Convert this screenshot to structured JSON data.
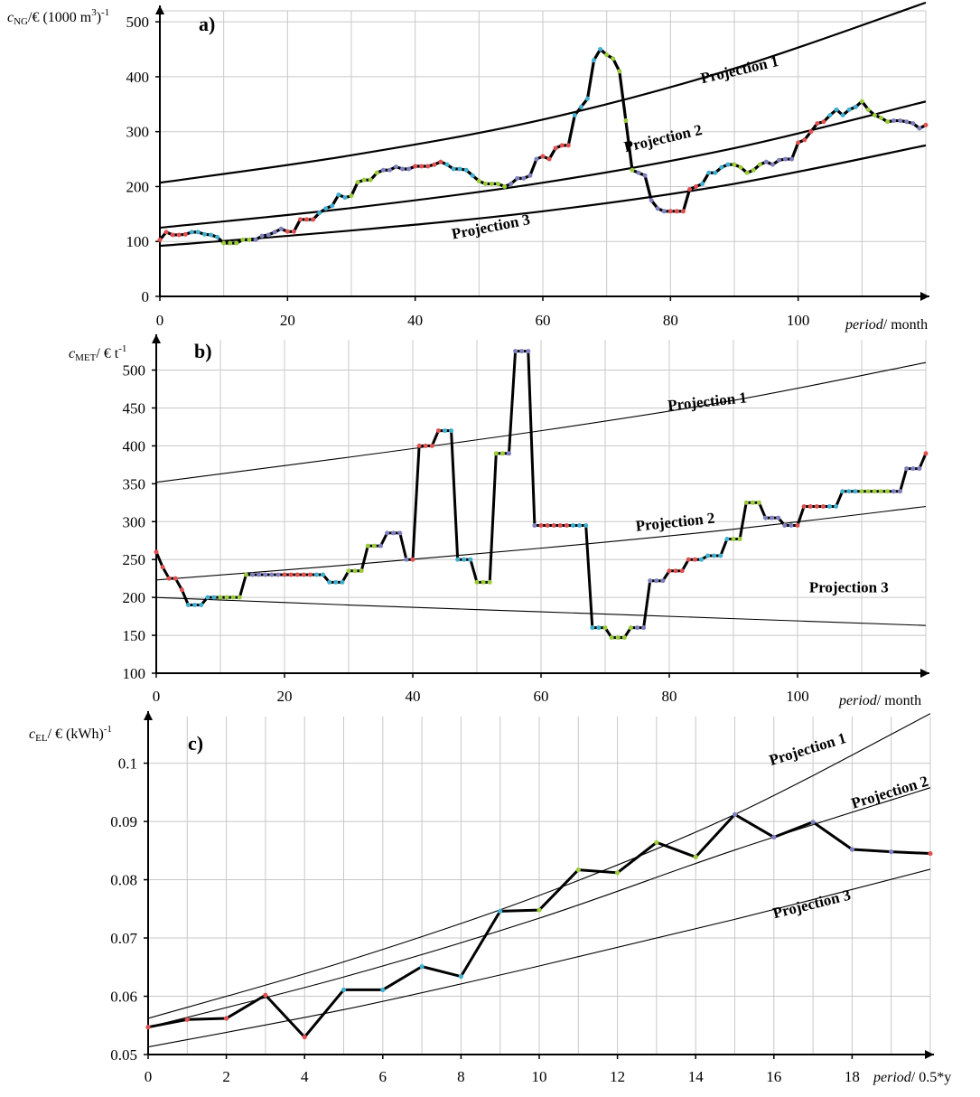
{
  "figure": {
    "background": "#ffffff"
  },
  "chart_data": [
    {
      "id": "a",
      "type": "line",
      "panel_label": "a)",
      "ylabel_parts": {
        "sym": "c",
        "sub": "NG",
        "rest": "/€ (1000 m",
        "sup1": "3",
        "rest2": ")",
        "sup2": "-1"
      },
      "xlabel_parts": {
        "ital": "period",
        "rest": "/ month"
      },
      "xlim": [
        0,
        120
      ],
      "ylim": [
        0,
        520
      ],
      "xticks": [
        0,
        20,
        40,
        60,
        80,
        100
      ],
      "yticks": [
        0,
        100,
        200,
        300,
        400,
        500
      ],
      "xtick_labels": [
        "0",
        "20",
        "40",
        "60",
        "80",
        "100"
      ],
      "ytick_labels": [
        "0",
        "100",
        "200",
        "300",
        "400",
        "500"
      ],
      "grid": true,
      "projections": [
        {
          "name": "Projection 1",
          "x": [
            0,
            30,
            60,
            90,
            120
          ],
          "y": [
            207,
            257,
            322,
            415,
            535
          ]
        },
        {
          "name": "Projection 2",
          "x": [
            0,
            30,
            60,
            90,
            120
          ],
          "y": [
            125,
            161,
            207,
            270,
            355
          ]
        },
        {
          "name": "Projection 3",
          "x": [
            0,
            30,
            60,
            90,
            120
          ],
          "y": [
            92,
            120,
            155,
            205,
            275
          ]
        }
      ],
      "projection_labels": [
        {
          "text": "Projection 1",
          "at_x": 91,
          "at_y": 404,
          "angle": -13
        },
        {
          "text": "Projection 2",
          "at_x": 79,
          "at_y": 279,
          "angle": -13
        },
        {
          "text": "Projection 3",
          "at_x": 52,
          "at_y": 118,
          "angle": -11
        }
      ],
      "series": [
        {
          "name": "",
          "x": [
            0,
            1,
            2,
            3,
            4,
            5,
            6,
            7,
            8,
            9,
            10,
            11,
            12,
            13,
            14,
            15,
            16,
            17,
            18,
            19,
            20,
            21,
            22,
            23,
            24,
            25,
            26,
            27,
            28,
            29,
            30,
            31,
            32,
            33,
            34,
            35,
            36,
            37,
            38,
            39,
            40,
            41,
            42,
            43,
            44,
            45,
            46,
            47,
            48,
            49,
            50,
            51,
            52,
            53,
            54,
            55,
            56,
            57,
            58,
            59,
            60,
            61,
            62,
            63,
            64,
            65,
            66,
            67,
            68,
            69,
            70,
            71,
            72,
            73,
            74,
            75,
            76,
            77,
            78,
            79,
            80,
            81,
            82,
            83,
            84,
            85,
            86,
            87,
            88,
            89,
            90,
            91,
            92,
            93,
            94,
            95,
            96,
            97,
            98,
            99,
            100,
            101,
            102,
            103,
            104,
            105,
            106,
            107,
            108,
            109,
            110,
            111,
            112,
            113,
            114,
            115,
            116,
            117,
            118,
            119,
            120
          ],
          "y": [
            103,
            117,
            112,
            112,
            113,
            117,
            117,
            113,
            112,
            108,
            97,
            97,
            97,
            103,
            103,
            103,
            110,
            112,
            117,
            123,
            118,
            118,
            140,
            140,
            140,
            152,
            160,
            165,
            185,
            180,
            183,
            208,
            212,
            212,
            225,
            230,
            230,
            236,
            232,
            232,
            237,
            237,
            237,
            240,
            245,
            240,
            232,
            232,
            230,
            220,
            210,
            205,
            205,
            205,
            200,
            205,
            215,
            215,
            220,
            250,
            255,
            250,
            270,
            275,
            275,
            330,
            345,
            360,
            430,
            450,
            440,
            433,
            410,
            320,
            230,
            225,
            220,
            175,
            160,
            155,
            155,
            155,
            155,
            195,
            200,
            205,
            225,
            225,
            235,
            240,
            240,
            235,
            225,
            230,
            240,
            245,
            240,
            248,
            250,
            250,
            280,
            285,
            300,
            315,
            318,
            330,
            340,
            330,
            340,
            345,
            355,
            340,
            330,
            325,
            318,
            320,
            320,
            318,
            315,
            306,
            312
          ]
        }
      ]
    },
    {
      "id": "b",
      "type": "line",
      "panel_label": "b)",
      "ylabel_parts": {
        "sym": "c",
        "sub": "MET",
        "rest": "/ € t",
        "sup1": "-1"
      },
      "xlabel_parts": {
        "ital": "period",
        "rest": "/ month"
      },
      "xlim": [
        0,
        120
      ],
      "ylim": [
        100,
        540
      ],
      "xticks": [
        0,
        20,
        40,
        60,
        80,
        100
      ],
      "yticks": [
        100,
        150,
        200,
        250,
        300,
        350,
        400,
        450,
        500
      ],
      "xtick_labels": [
        "0",
        "20",
        "40",
        "60",
        "80",
        "100"
      ],
      "ytick_labels": [
        "100",
        "150",
        "200",
        "250",
        "300",
        "350",
        "400",
        "450",
        "500"
      ],
      "grid": true,
      "projections": [
        {
          "name": "Projection 1",
          "x": [
            0,
            30,
            60,
            90,
            120
          ],
          "y": [
            352,
            385,
            420,
            460,
            510
          ]
        },
        {
          "name": "Projection 2",
          "x": [
            0,
            30,
            60,
            90,
            120
          ],
          "y": [
            223,
            243,
            265,
            290,
            320
          ]
        },
        {
          "name": "Projection 3",
          "x": [
            0,
            30,
            60,
            90,
            120
          ],
          "y": [
            200,
            190,
            181,
            172,
            163
          ]
        }
      ],
      "projection_labels": [
        {
          "text": "Projection 1",
          "at_x": 86,
          "at_y": 452,
          "angle": -6
        },
        {
          "text": "Projection 2",
          "at_x": 81,
          "at_y": 293,
          "angle": -6
        },
        {
          "text": "Projection 3",
          "at_x": 108,
          "at_y": 207,
          "angle": 0
        }
      ],
      "series": [
        {
          "name": "",
          "x": [
            0,
            1,
            2,
            3,
            4,
            5,
            6,
            7,
            8,
            9,
            10,
            11,
            12,
            13,
            14,
            15,
            16,
            17,
            18,
            19,
            20,
            21,
            22,
            23,
            24,
            25,
            26,
            27,
            28,
            29,
            30,
            31,
            32,
            33,
            34,
            35,
            36,
            37,
            38,
            39,
            40,
            41,
            42,
            43,
            44,
            45,
            46,
            47,
            48,
            49,
            50,
            51,
            52,
            53,
            54,
            55,
            56,
            57,
            58,
            59,
            60,
            61,
            62,
            63,
            64,
            65,
            66,
            67,
            68,
            69,
            70,
            71,
            72,
            73,
            74,
            75,
            76,
            77,
            78,
            79,
            80,
            81,
            82,
            83,
            84,
            85,
            86,
            87,
            88,
            89,
            90,
            91,
            92,
            93,
            94,
            95,
            96,
            97,
            98,
            99,
            100,
            101,
            102,
            103,
            104,
            105,
            106,
            107,
            108,
            109,
            110,
            111,
            112,
            113,
            114,
            115,
            116,
            117,
            118,
            119,
            120
          ],
          "y": [
            260,
            240,
            225,
            225,
            210,
            190,
            190,
            190,
            200,
            200,
            200,
            200,
            200,
            200,
            230,
            230,
            230,
            230,
            230,
            230,
            230,
            230,
            230,
            230,
            230,
            230,
            230,
            220,
            220,
            220,
            235,
            235,
            235,
            268,
            268,
            268,
            285,
            285,
            285,
            250,
            250,
            400,
            400,
            400,
            420,
            420,
            420,
            250,
            250,
            250,
            220,
            220,
            220,
            390,
            390,
            390,
            525,
            525,
            525,
            295,
            295,
            295,
            295,
            295,
            295,
            295,
            295,
            295,
            160,
            160,
            160,
            147,
            147,
            147,
            160,
            160,
            160,
            222,
            222,
            222,
            235,
            235,
            235,
            250,
            250,
            250,
            255,
            255,
            255,
            277,
            277,
            277,
            325,
            325,
            325,
            305,
            305,
            305,
            295,
            295,
            295,
            320,
            320,
            320,
            320,
            320,
            320,
            340,
            340,
            340,
            340,
            340,
            340,
            340,
            340,
            340,
            340,
            370,
            370,
            370,
            390
          ]
        }
      ]
    },
    {
      "id": "c",
      "type": "line",
      "panel_label": "c)",
      "ylabel_parts": {
        "sym": "c",
        "sub": "EL",
        "rest": "/ € (kWh)",
        "sup1": "-1"
      },
      "xlabel_parts": {
        "ital": "period",
        "rest": "/ 0.5*y"
      },
      "xlim": [
        0,
        20
      ],
      "ylim": [
        0.05,
        0.108
      ],
      "xticks": [
        0,
        2,
        4,
        6,
        8,
        10,
        12,
        14,
        16,
        18
      ],
      "yticks": [
        0.05,
        0.06,
        0.07,
        0.08,
        0.09,
        0.1
      ],
      "xtick_labels": [
        "0",
        "2",
        "4",
        "6",
        "8",
        "10",
        "12",
        "14",
        "16",
        "18"
      ],
      "ytick_labels": [
        "0.05",
        "0.06",
        "0.07",
        "0.08",
        "0.09",
        "0.1"
      ],
      "grid": true,
      "projections": [
        {
          "name": "Projection 1",
          "x": [
            0,
            5,
            10,
            15,
            20
          ],
          "y": [
            0.0562,
            0.0659,
            0.0773,
            0.0912,
            0.1085
          ]
        },
        {
          "name": "Projection 2",
          "x": [
            0,
            5,
            10,
            15,
            20
          ],
          "y": [
            0.0547,
            0.0633,
            0.0734,
            0.0851,
            0.0958
          ]
        },
        {
          "name": "Projection 3",
          "x": [
            0,
            5,
            10,
            15,
            20
          ],
          "y": [
            0.0513,
            0.0577,
            0.0652,
            0.0732,
            0.0818
          ]
        }
      ],
      "projection_labels": [
        {
          "text": "Projection 1",
          "at_x": 16.9,
          "at_y": 0.1016,
          "angle": -17
        },
        {
          "text": "Projection 2",
          "at_x": 19.0,
          "at_y": 0.0942,
          "angle": -17
        },
        {
          "text": "Projection 3",
          "at_x": 17.0,
          "at_y": 0.075,
          "angle": -14
        }
      ],
      "series": [
        {
          "name": "",
          "x": [
            0,
            1,
            2,
            3,
            4,
            5,
            6,
            7,
            8,
            9,
            10,
            11,
            12,
            13,
            14,
            15,
            16,
            17,
            18,
            19,
            20
          ],
          "y": [
            0.0547,
            0.056,
            0.0562,
            0.0602,
            0.053,
            0.0611,
            0.0611,
            0.0651,
            0.0634,
            0.0746,
            0.0748,
            0.0817,
            0.0812,
            0.0864,
            0.0839,
            0.0912,
            0.0873,
            0.0899,
            0.0852,
            0.0848,
            0.0845
          ]
        }
      ]
    }
  ],
  "colors": {
    "grid": "#c8c8c8",
    "axis": "#000000",
    "projection": "#000000",
    "series": "#000000",
    "markers": [
      "#e05050",
      "#40b0d0",
      "#9bcc3a",
      "#8080c0"
    ]
  }
}
